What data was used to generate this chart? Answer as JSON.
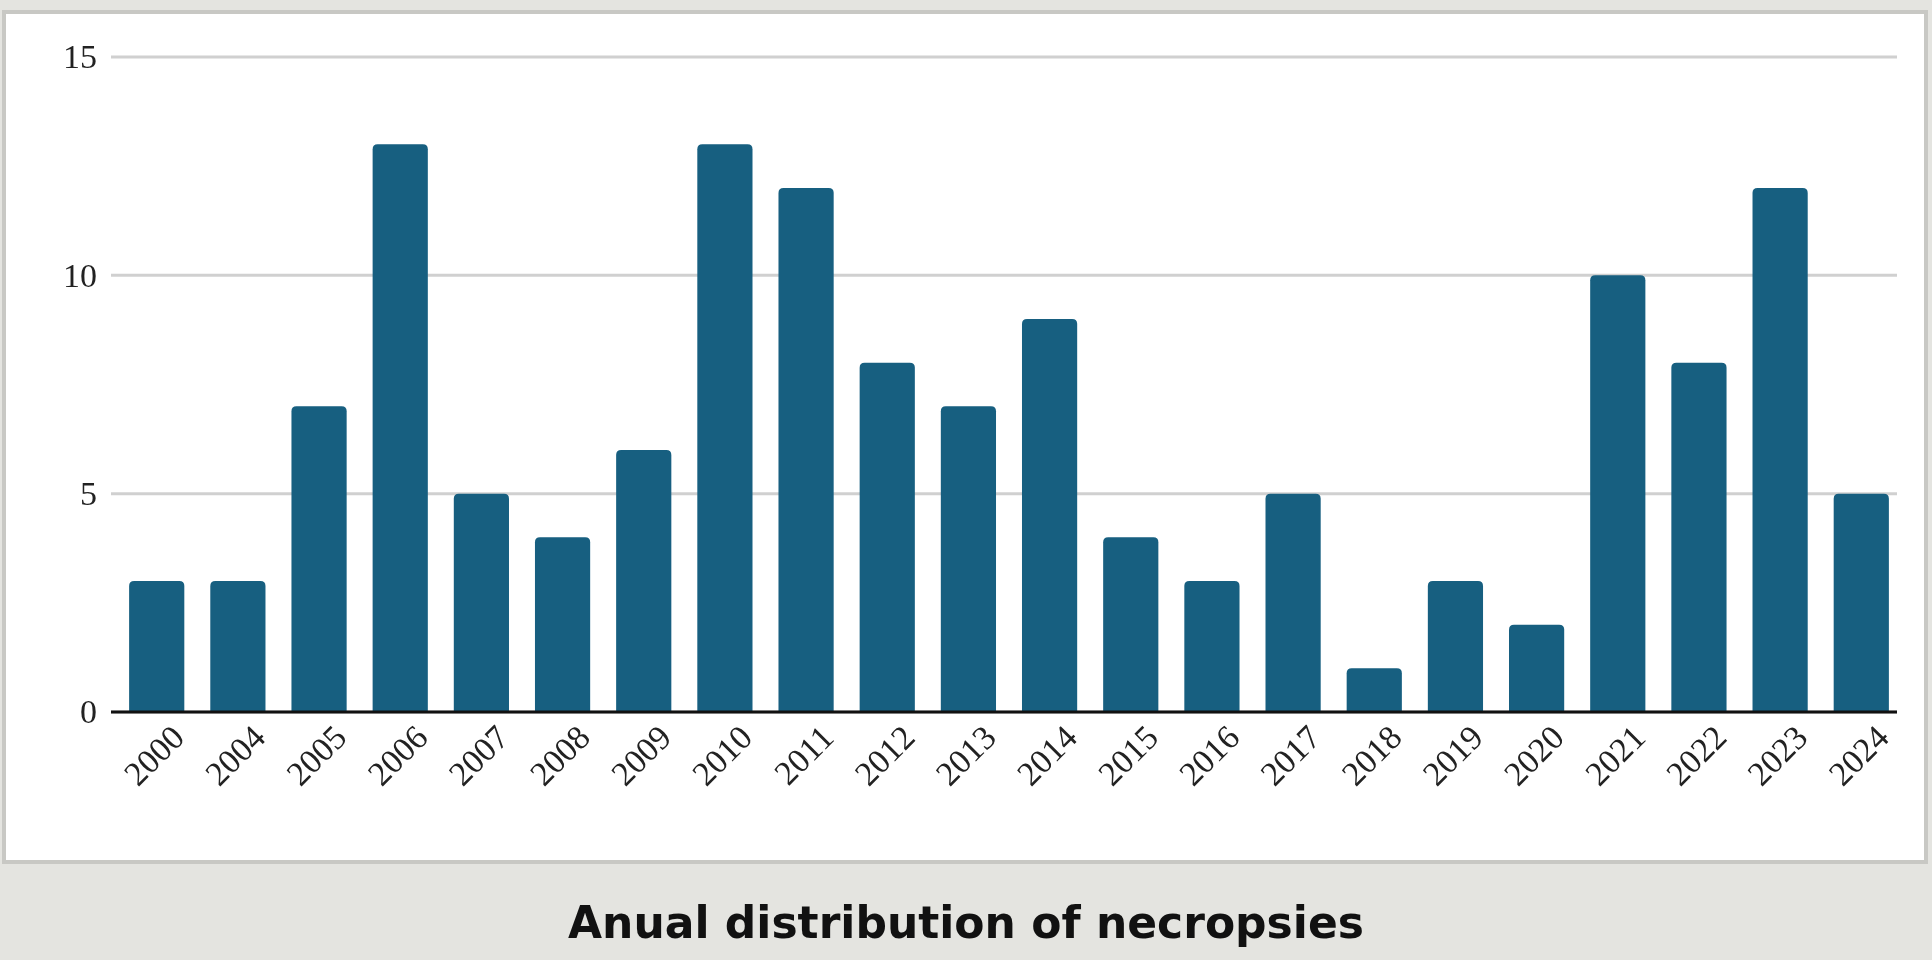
{
  "chart_data": {
    "type": "bar",
    "title": "Anual distribution of necropsies",
    "categories": [
      "2000",
      "2004",
      "2005",
      "2006",
      "2007",
      "2008",
      "2009",
      "2010",
      "2011",
      "2012",
      "2013",
      "2014",
      "2015",
      "2016",
      "2017",
      "2018",
      "2019",
      "2020",
      "2021",
      "2022",
      "2023",
      "2024"
    ],
    "values": [
      3,
      3,
      7,
      13,
      5,
      4,
      6,
      13,
      12,
      8,
      7,
      9,
      4,
      3,
      5,
      1,
      3,
      2,
      10,
      8,
      12,
      5
    ],
    "color": "#175f80",
    "ylim": [
      0,
      15
    ],
    "yticks": [
      0,
      5,
      10,
      15
    ],
    "grid": "y"
  }
}
